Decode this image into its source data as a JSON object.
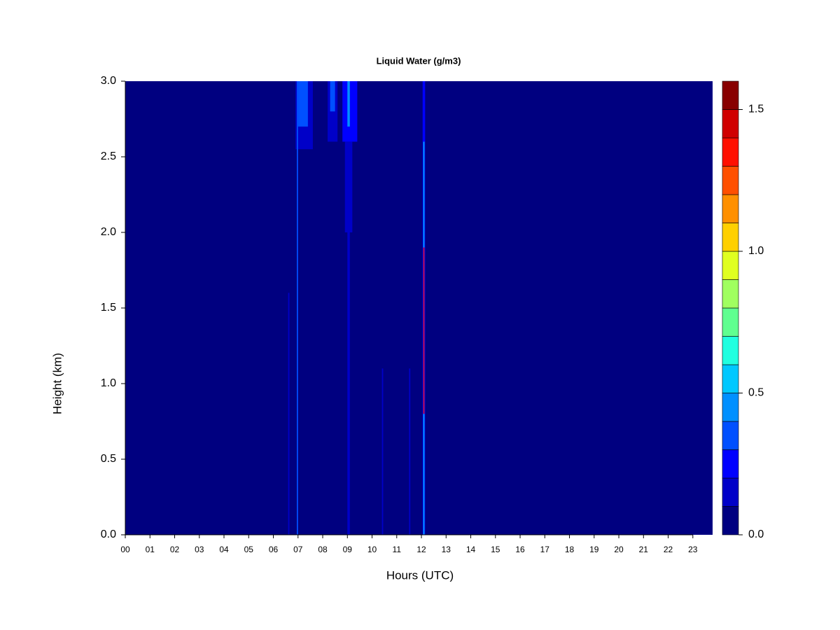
{
  "chart_data": {
    "type": "contour",
    "title": "Liquid Water (g/m3)",
    "x_label": "Hours (UTC)",
    "y_label": "Height (km)",
    "xlim": [
      0,
      23.8
    ],
    "ylim": [
      0,
      3.0
    ],
    "xticks": [
      {
        "value": 0,
        "label": "00"
      },
      {
        "value": 1,
        "label": "01"
      },
      {
        "value": 2,
        "label": "02"
      },
      {
        "value": 3,
        "label": "03"
      },
      {
        "value": 4,
        "label": "04"
      },
      {
        "value": 5,
        "label": "05"
      },
      {
        "value": 6,
        "label": "06"
      },
      {
        "value": 7,
        "label": "07"
      },
      {
        "value": 8,
        "label": "08"
      },
      {
        "value": 9,
        "label": "09"
      },
      {
        "value": 10,
        "label": "10"
      },
      {
        "value": 11,
        "label": "11"
      },
      {
        "value": 12,
        "label": "12"
      },
      {
        "value": 13,
        "label": "13"
      },
      {
        "value": 14,
        "label": "14"
      },
      {
        "value": 15,
        "label": "15"
      },
      {
        "value": 16,
        "label": "16"
      },
      {
        "value": 17,
        "label": "17"
      },
      {
        "value": 18,
        "label": "18"
      },
      {
        "value": 19,
        "label": "19"
      },
      {
        "value": 20,
        "label": "20"
      },
      {
        "value": 21,
        "label": "21"
      },
      {
        "value": 22,
        "label": "22"
      },
      {
        "value": 23,
        "label": "23"
      }
    ],
    "yticks": [
      {
        "value": 0,
        "label": "0.0"
      },
      {
        "value": 0.5,
        "label": "0.5"
      },
      {
        "value": 1,
        "label": "1.0"
      },
      {
        "value": 1.5,
        "label": "1.5"
      },
      {
        "value": 2,
        "label": "2.0"
      },
      {
        "value": 2.5,
        "label": "2.5"
      },
      {
        "value": 3,
        "label": "3.0"
      }
    ],
    "levels": [
      0,
      0.1,
      0.2,
      0.3,
      0.4,
      0.5,
      0.6,
      0.7,
      0.8,
      0.9,
      1.0,
      1.1,
      1.2,
      1.3,
      1.4,
      1.5,
      1.6
    ],
    "level_colors": [
      "#000080",
      "#0000c8",
      "#0000ff",
      "#0050ff",
      "#0090ff",
      "#00c8ff",
      "#20ffe0",
      "#60ff90",
      "#a0ff60",
      "#e0ff20",
      "#ffd000",
      "#ff9000",
      "#ff5000",
      "#ff1000",
      "#d00000",
      "#880000"
    ],
    "colorbar_ticks": [
      {
        "value": 0,
        "label": "0.0"
      },
      {
        "value": 0.5,
        "label": "0.5"
      },
      {
        "value": 1,
        "label": "1.0"
      },
      {
        "value": 1.5,
        "label": "1.5"
      }
    ],
    "cells": [
      {
        "x": [
          0,
          23.8
        ],
        "y": [
          0,
          3.0
        ],
        "value": 0.0
      },
      {
        "x": [
          6.9,
          7.6
        ],
        "y": [
          2.55,
          3.0
        ],
        "value": 0.15
      },
      {
        "x": [
          7.0,
          7.4
        ],
        "y": [
          2.7,
          3.0
        ],
        "value": 0.3
      },
      {
        "x": [
          8.2,
          8.6
        ],
        "y": [
          2.6,
          3.0
        ],
        "value": 0.15
      },
      {
        "x": [
          8.3,
          8.5
        ],
        "y": [
          2.8,
          3.0
        ],
        "value": 0.3
      },
      {
        "x": [
          8.8,
          9.4
        ],
        "y": [
          2.6,
          3.0
        ],
        "value": 0.2
      },
      {
        "x": [
          8.9,
          9.2
        ],
        "y": [
          2.0,
          2.6
        ],
        "value": 0.15
      },
      {
        "x": [
          9.0,
          9.1
        ],
        "y": [
          2.7,
          3.0
        ],
        "value": 0.4
      },
      {
        "x": [
          6.95,
          7.0
        ],
        "y": [
          0,
          3.0
        ],
        "value": 0.35
      },
      {
        "x": [
          6.6,
          6.65
        ],
        "y": [
          0,
          1.6
        ],
        "value": 0.12
      },
      {
        "x": [
          9.0,
          9.1
        ],
        "y": [
          0,
          2.0
        ],
        "value": 0.15
      },
      {
        "x": [
          10.4,
          10.45
        ],
        "y": [
          0,
          1.1
        ],
        "value": 0.12
      },
      {
        "x": [
          11.5,
          11.55
        ],
        "y": [
          0,
          1.1
        ],
        "value": 0.12
      },
      {
        "x": [
          12.05,
          12.15
        ],
        "y": [
          0,
          3.0
        ],
        "value": 0.2
      },
      {
        "x": [
          12.08,
          12.12
        ],
        "y": [
          0,
          0.8
        ],
        "value": 0.55
      },
      {
        "x": [
          12.08,
          12.12
        ],
        "y": [
          1.9,
          2.6
        ],
        "value": 0.55
      },
      {
        "x": [
          12.08,
          12.12
        ],
        "y": [
          0.8,
          1.9
        ],
        "value": 1.3
      }
    ]
  }
}
